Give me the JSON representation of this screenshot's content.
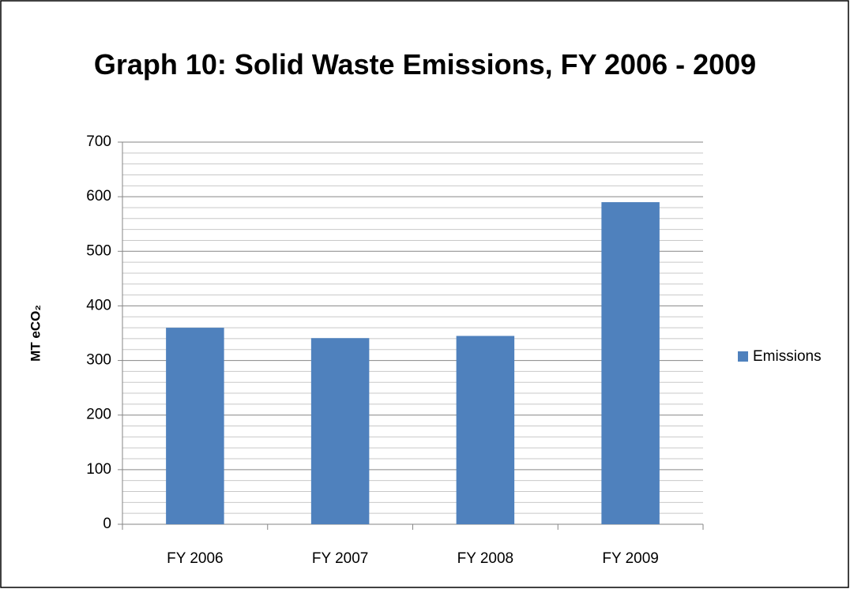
{
  "chart_data": {
    "type": "bar",
    "title": "Graph 10: Solid Waste Emissions, FY 2006 - 2009",
    "y_label": "MT eCO₂",
    "categories": [
      "FY 2006",
      "FY 2007",
      "FY 2008",
      "FY 2009"
    ],
    "series": [
      {
        "name": "Emissions",
        "color": "#4f81bd",
        "values": [
          360,
          341,
          345,
          590
        ]
      }
    ],
    "ylim": [
      0,
      700
    ],
    "yticks": [
      0,
      100,
      200,
      300,
      400,
      500,
      600,
      700
    ],
    "y_minor_ticks": [
      20,
      40,
      60,
      80,
      120,
      140,
      160,
      180,
      220,
      240,
      260,
      280,
      320,
      340,
      360,
      380,
      420,
      440,
      460,
      480,
      520,
      540,
      560,
      580,
      620,
      640,
      660,
      680
    ],
    "grid": true,
    "legend": "right"
  }
}
